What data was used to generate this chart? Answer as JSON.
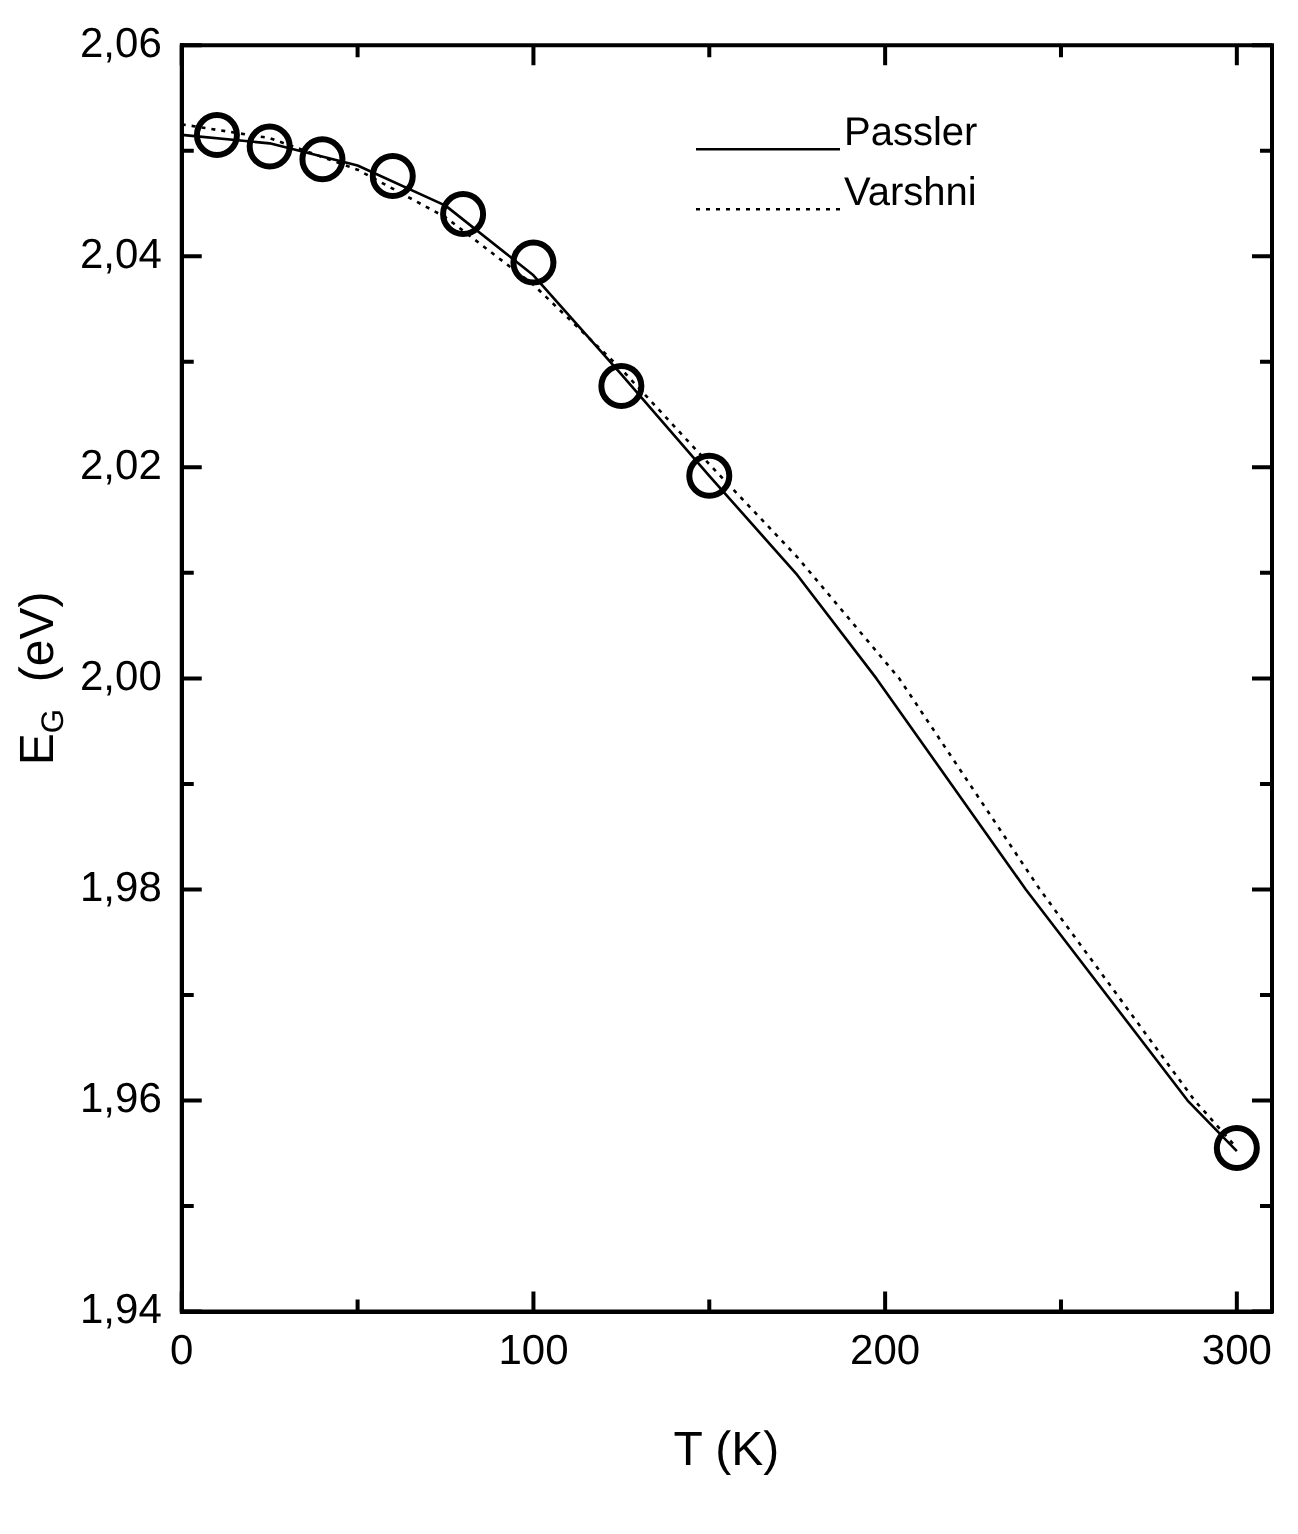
{
  "chart_data": {
    "type": "scatter",
    "xlabel": "T (K)",
    "ylabel": "E$_{G}$  (eV)",
    "xlim": [
      0,
      310
    ],
    "ylim": [
      1.94,
      2.06
    ],
    "xticks": [
      0,
      {
        "value": 50,
        "label": null
      },
      100,
      {
        "value": 150,
        "label": null
      },
      200,
      {
        "value": 250,
        "label": null
      },
      300
    ],
    "yticks": [
      {
        "value": 1.94,
        "label": "1,94"
      },
      {
        "value": 1.95,
        "label": null
      },
      {
        "value": 1.96,
        "label": "1,96"
      },
      {
        "value": 1.97,
        "label": null
      },
      {
        "value": 1.98,
        "label": "1,98"
      },
      {
        "value": 1.99,
        "label": null
      },
      {
        "value": 2.0,
        "label": "2,00"
      },
      {
        "value": 2.01,
        "label": null
      },
      {
        "value": 2.02,
        "label": "2,02"
      },
      {
        "value": 2.03,
        "label": null
      },
      {
        "value": 2.04,
        "label": "2,04"
      },
      {
        "value": 2.05,
        "label": null
      },
      {
        "value": 2.06,
        "label": "2,06"
      }
    ],
    "grid": false,
    "legend": "top right",
    "series": [
      {
        "color": "#000000",
        "marker": "circle",
        "x": [
          10,
          25,
          40,
          60,
          80,
          100,
          125,
          150,
          300
        ],
        "values": [
          2.0515,
          2.0504,
          2.0492,
          2.0476,
          2.044,
          2.0394,
          2.0277,
          2.0192,
          1.9555
        ]
      },
      {
        "type": "line",
        "name": "Passler",
        "color": "#000000",
        "marker": "none",
        "line_style": "solid",
        "x": [
          0,
          25,
          50,
          75,
          100,
          125,
          150,
          175,
          197.5,
          240,
          286,
          300
        ],
        "values": [
          2.0515,
          2.0507,
          2.0486,
          2.0448,
          2.0382,
          2.0288,
          2.0192,
          2.0098,
          2.0,
          1.98,
          1.96,
          1.9552
        ]
      },
      {
        "type": "line",
        "name": "Varshni",
        "color": "#000000",
        "marker": "none",
        "line_style": "dotted",
        "x": [
          0,
          25,
          50,
          75,
          100,
          125,
          150,
          175,
          204,
          244,
          288,
          300
        ],
        "values": [
          2.0525,
          2.0512,
          2.0482,
          2.0437,
          2.0373,
          2.0293,
          2.0203,
          2.0115,
          2.0,
          1.98,
          1.96,
          1.9555
        ]
      }
    ]
  }
}
